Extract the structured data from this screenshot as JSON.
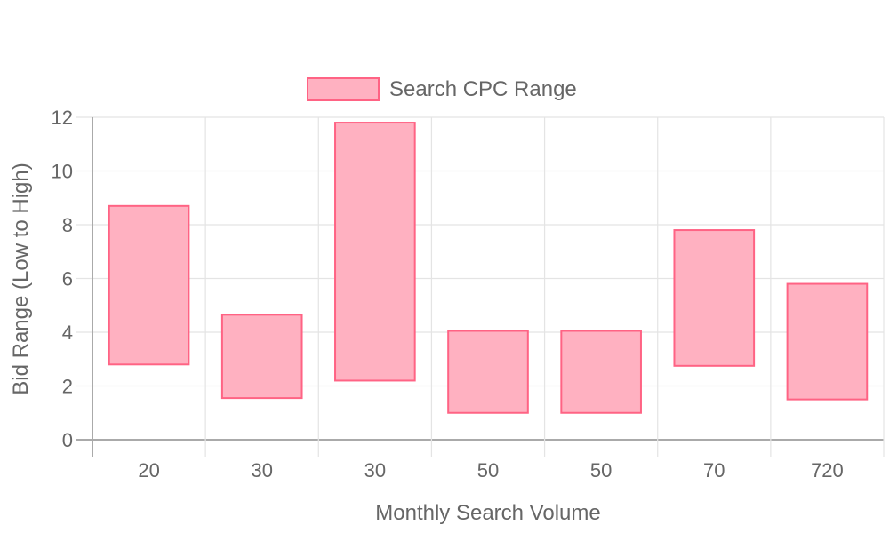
{
  "chart_data": {
    "type": "bar",
    "subtype": "floating-range",
    "categories": [
      "20",
      "30",
      "30",
      "50",
      "50",
      "70",
      "720"
    ],
    "series": [
      {
        "name": "Search CPC Range",
        "ranges": [
          [
            2.8,
            8.7
          ],
          [
            1.55,
            4.65
          ],
          [
            2.2,
            11.8
          ],
          [
            1.0,
            4.05
          ],
          [
            1.0,
            4.05
          ],
          [
            2.75,
            7.8
          ],
          [
            1.5,
            5.8
          ]
        ],
        "fill": "#ffb1c1",
        "stroke": "#ff6384"
      }
    ],
    "xlabel": "Monthly Search Volume",
    "ylabel": "Bid Range (Low to High)",
    "ylim": [
      0,
      12
    ],
    "yticks": [
      "0",
      "2",
      "4",
      "6",
      "8",
      "10",
      "12"
    ],
    "legend_position": "top-center",
    "grid": true
  }
}
